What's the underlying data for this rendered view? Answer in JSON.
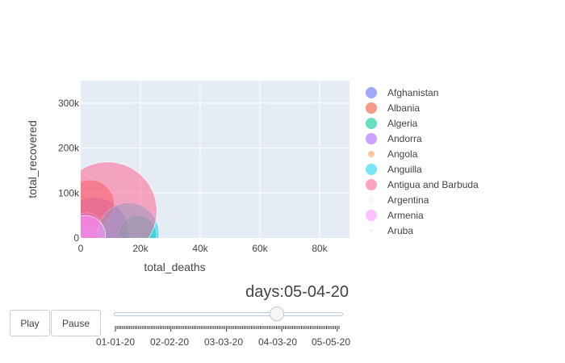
{
  "chart_data": {
    "type": "scatter",
    "xlabel": "total_deaths",
    "ylabel": "total_recovered",
    "xlim": [
      0,
      90000
    ],
    "ylim": [
      0,
      350000
    ],
    "x_ticks": [
      0,
      20000,
      40000,
      60000,
      80000
    ],
    "x_tick_labels": [
      "0",
      "20k",
      "40k",
      "60k",
      "80k"
    ],
    "y_ticks": [
      0,
      100000,
      200000,
      300000
    ],
    "y_tick_labels": [
      "0",
      "100k",
      "200k",
      "300k"
    ],
    "grid": true,
    "legend_position": "right",
    "plot_background": "#e5ecf6",
    "series": [
      {
        "name": "Afghanistan",
        "color": "#636efa",
        "x": [
          4500
        ],
        "y": [
          15000
        ],
        "size": 1.0
      },
      {
        "name": "Albania",
        "color": "#ef553b",
        "x": [
          3000
        ],
        "y": [
          75000
        ],
        "size": 0.72
      },
      {
        "name": "Algeria",
        "color": "#00cc96",
        "x": [
          19000
        ],
        "y": [
          8000
        ],
        "size": 0.55
      },
      {
        "name": "Andorra",
        "color": "#ab63fa",
        "x": [
          2000
        ],
        "y": [
          22000
        ],
        "size": 0.45
      },
      {
        "name": "Angola",
        "color": "#ffa15a",
        "x": [
          0
        ],
        "y": [
          0
        ],
        "size": 0.04
      },
      {
        "name": "Anguilla",
        "color": "#19d3f3",
        "x": [
          16000
        ],
        "y": [
          10000
        ],
        "size": 0.9
      },
      {
        "name": "Antigua and Barbuda",
        "color": "#ff6692",
        "x": [
          9000
        ],
        "y": [
          60000
        ],
        "size": 1.45
      },
      {
        "name": "Argentina",
        "color": "#b6e880",
        "x": [
          0
        ],
        "y": [
          0
        ],
        "size": 0.02
      },
      {
        "name": "Armenia",
        "color": "#ff97ff",
        "x": [
          1500
        ],
        "y": [
          5000
        ],
        "size": 0.6
      },
      {
        "name": "Aruba",
        "color": "#fecb52",
        "x": [
          0
        ],
        "y": [
          0
        ],
        "size": 0.02
      }
    ]
  },
  "controls": {
    "play_label": "Play",
    "pause_label": "Pause"
  },
  "slider": {
    "prefix": "days:",
    "current_value": "05-04-20",
    "position_fraction": 0.72,
    "step_labels": [
      "01-01-20",
      "02-02-20",
      "03-03-20",
      "04-03-20",
      "05-05-20"
    ]
  }
}
